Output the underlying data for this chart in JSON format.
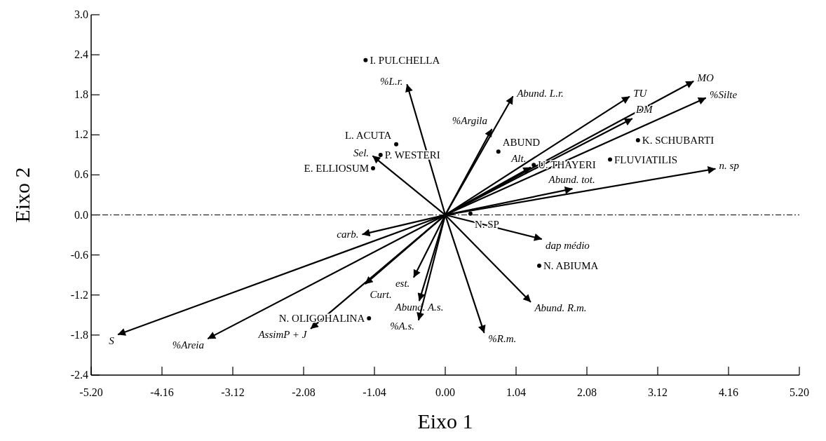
{
  "chart_data": {
    "type": "scatter",
    "xlabel": "Eixo 1",
    "ylabel": "Eixo 2",
    "xlim": [
      -5.2,
      5.2
    ],
    "ylim": [
      -2.4,
      3.0
    ],
    "xticks": [
      {
        "value": -5.2,
        "label": "-5.20"
      },
      {
        "value": -4.16,
        "label": "-4.16"
      },
      {
        "value": -3.12,
        "label": "-3.12"
      },
      {
        "value": -2.08,
        "label": "-2.08"
      },
      {
        "value": -1.04,
        "label": "-1.04"
      },
      {
        "value": 0,
        "label": "0.00"
      },
      {
        "value": 1.04,
        "label": "1.04"
      },
      {
        "value": 2.08,
        "label": "2.08"
      },
      {
        "value": 3.12,
        "label": "3.12"
      },
      {
        "value": 4.16,
        "label": "4.16"
      },
      {
        "value": 5.2,
        "label": "5.20"
      }
    ],
    "yticks": [
      {
        "value": -2.4,
        "label": "-2.4"
      },
      {
        "value": -1.8,
        "label": "-1.8"
      },
      {
        "value": -1.2,
        "label": "-1.2"
      },
      {
        "value": -0.6,
        "label": "-0.6"
      },
      {
        "value": 0,
        "label": "0.0"
      },
      {
        "value": 0.6,
        "label": "0.6"
      },
      {
        "value": 1.2,
        "label": "1.2"
      },
      {
        "value": 1.8,
        "label": "1.8"
      },
      {
        "value": 2.4,
        "label": "2.4"
      },
      {
        "value": 3.0,
        "label": "3.0"
      }
    ],
    "ref_lines": [
      {
        "axis": "y",
        "value": 0,
        "line_style": "dashed",
        "color": "#000000"
      }
    ],
    "series": [
      {
        "type": "line",
        "name": "S",
        "color": "#000000",
        "x": [
          0,
          -4.8
        ],
        "values": [
          0,
          -1.79
        ]
      },
      {
        "type": "line",
        "name": "%Areia",
        "color": "#000000",
        "x": [
          0,
          -3.48
        ],
        "values": [
          0,
          -1.85
        ]
      },
      {
        "type": "line",
        "name": "AssimP + J",
        "color": "#000000",
        "x": [
          0,
          -1.97
        ],
        "values": [
          0,
          -1.7
        ]
      },
      {
        "type": "line",
        "name": "Curt.",
        "color": "#000000",
        "x": [
          0,
          -1.17
        ],
        "values": [
          0,
          -1.03
        ]
      },
      {
        "type": "line",
        "name": "carb.",
        "color": "#000000",
        "x": [
          0,
          -1.21
        ],
        "values": [
          0,
          -0.29
        ]
      },
      {
        "type": "line",
        "name": "est.",
        "color": "#000000",
        "x": [
          0,
          -0.46
        ],
        "values": [
          0,
          -0.93
        ]
      },
      {
        "type": "line",
        "name": "Abund. A.s.",
        "color": "#000000",
        "x": [
          0,
          -0.38
        ],
        "values": [
          0,
          -1.28
        ]
      },
      {
        "type": "line",
        "name": "%A.s.",
        "color": "#000000",
        "x": [
          0,
          -0.39
        ],
        "values": [
          0,
          -1.57
        ]
      },
      {
        "type": "line",
        "name": "%R.m.",
        "color": "#000000",
        "x": [
          0,
          0.57
        ],
        "values": [
          0,
          -1.76
        ]
      },
      {
        "type": "line",
        "name": "Abund. R.m.",
        "color": "#000000",
        "x": [
          0,
          1.25
        ],
        "values": [
          0,
          -1.3
        ]
      },
      {
        "type": "line",
        "name": "dap médio",
        "color": "#000000",
        "x": [
          0,
          1.41
        ],
        "values": [
          0,
          -0.36
        ]
      },
      {
        "type": "line",
        "name": "Abund. tot.",
        "color": "#000000",
        "x": [
          0,
          1.86
        ],
        "values": [
          0,
          0.39
        ]
      },
      {
        "type": "line",
        "name": "n. sp",
        "color": "#000000",
        "x": [
          0,
          3.96
        ],
        "values": [
          0,
          0.69
        ]
      },
      {
        "type": "line",
        "name": "Alt.",
        "color": "#000000",
        "x": [
          0,
          1.25
        ],
        "values": [
          0,
          0.71
        ]
      },
      {
        "type": "line",
        "name": "TU",
        "color": "#000000",
        "x": [
          0,
          2.7
        ],
        "values": [
          0,
          1.77
        ]
      },
      {
        "type": "line",
        "name": "MO",
        "color": "#000000",
        "x": [
          0,
          3.64
        ],
        "values": [
          0,
          2.0
        ]
      },
      {
        "type": "line",
        "name": "%Silte",
        "color": "#000000",
        "x": [
          0,
          3.82
        ],
        "values": [
          0,
          1.75
        ]
      },
      {
        "type": "line",
        "name": "DM",
        "color": "#000000",
        "x": [
          0,
          2.74
        ],
        "values": [
          0,
          1.44
        ]
      },
      {
        "type": "line",
        "name": "Abund. L.r.",
        "color": "#000000",
        "x": [
          0,
          0.99
        ],
        "values": [
          0,
          1.77
        ]
      },
      {
        "type": "line",
        "name": "%Argila",
        "color": "#000000",
        "x": [
          0,
          0.68
        ],
        "values": [
          0,
          1.28
        ]
      },
      {
        "type": "line",
        "name": "%L.r.",
        "color": "#000000",
        "x": [
          0,
          -0.56
        ],
        "values": [
          0,
          1.95
        ]
      },
      {
        "type": "line",
        "name": "Sel.",
        "color": "#000000",
        "x": [
          0,
          -1.06
        ],
        "values": [
          0,
          0.88
        ]
      },
      {
        "name": "I. PULCHELLA",
        "color": "#000000",
        "marker": "circle",
        "x": [
          -1.17
        ],
        "values": [
          2.32
        ]
      },
      {
        "name": "L. ACUTA",
        "color": "#000000",
        "marker": "circle",
        "x": [
          -0.72
        ],
        "values": [
          1.06
        ]
      },
      {
        "name": "P. WESTERI",
        "color": "#000000",
        "marker": "circle",
        "x": [
          -0.95
        ],
        "values": [
          0.9
        ]
      },
      {
        "name": "E. ELLIOSUM",
        "color": "#000000",
        "marker": "circle",
        "x": [
          -1.06
        ],
        "values": [
          0.7
        ]
      },
      {
        "name": "ABUND",
        "color": "#000000",
        "marker": "circle",
        "x": [
          0.78
        ],
        "values": [
          0.95
        ]
      },
      {
        "name": "U. THAYERI",
        "color": "#000000",
        "marker": "circle",
        "x": [
          1.3
        ],
        "values": [
          0.75
        ]
      },
      {
        "name": "FLUVIATILIS",
        "color": "#000000",
        "marker": "circle",
        "x": [
          2.42
        ],
        "values": [
          0.83
        ]
      },
      {
        "name": "K. SCHUBARTI",
        "color": "#000000",
        "marker": "circle",
        "x": [
          2.83
        ],
        "values": [
          1.12
        ]
      },
      {
        "name": "N. SP",
        "color": "#000000",
        "marker": "circle",
        "x": [
          0.37
        ],
        "values": [
          0.02
        ]
      },
      {
        "name": "N. ABIUMA",
        "color": "#000000",
        "marker": "circle",
        "x": [
          1.38
        ],
        "values": [
          -0.76
        ]
      },
      {
        "name": "N. OLIGOHALINA",
        "color": "#000000",
        "marker": "circle",
        "x": [
          -1.12
        ],
        "values": [
          -1.55
        ]
      }
    ]
  }
}
